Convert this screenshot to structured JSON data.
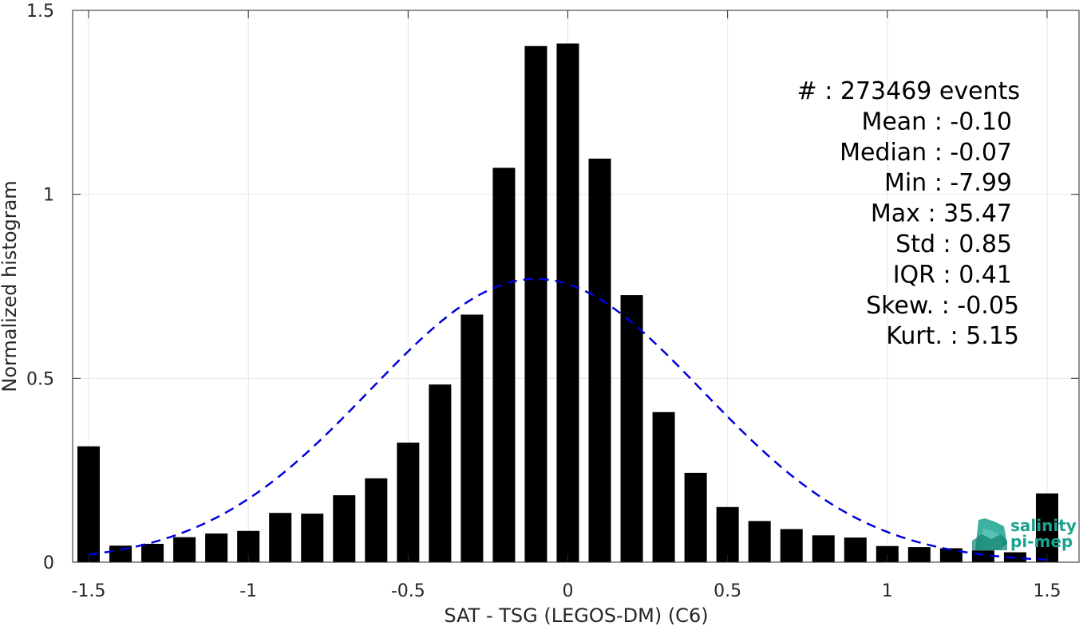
{
  "chart_data": {
    "type": "bar",
    "xlabel": "SAT - TSG (LEGOS-DM) (C6)",
    "ylabel": "Normalized histogram",
    "xlim": [
      -1.55,
      1.6
    ],
    "ylim": [
      0,
      1.5
    ],
    "xticks": [
      -1.5,
      -1,
      -0.5,
      0,
      0.5,
      1,
      1.5
    ],
    "xtick_labels": [
      "-1.5",
      "-1",
      "-0.5",
      "0",
      "0.5",
      "1",
      "1.5"
    ],
    "yticks": [
      0,
      0.5,
      1,
      1.5
    ],
    "ytick_labels": [
      "0",
      "0.5",
      "1",
      "1.5"
    ],
    "grid": true,
    "bar_color": "#000000",
    "bar_width": 0.07,
    "bin_centers": [
      -1.5,
      -1.4,
      -1.3,
      -1.2,
      -1.1,
      -1.0,
      -0.9,
      -0.8,
      -0.7,
      -0.6,
      -0.5,
      -0.4,
      -0.3,
      -0.2,
      -0.1,
      0.0,
      0.1,
      0.2,
      0.3,
      0.4,
      0.5,
      0.6,
      0.7,
      0.8,
      0.9,
      1.0,
      1.1,
      1.2,
      1.3,
      1.4,
      1.5
    ],
    "values": [
      0.315,
      0.045,
      0.05,
      0.068,
      0.078,
      0.085,
      0.134,
      0.132,
      0.182,
      0.228,
      0.325,
      0.483,
      0.673,
      1.072,
      1.403,
      1.41,
      1.097,
      0.726,
      0.408,
      0.243,
      0.15,
      0.112,
      0.09,
      0.073,
      0.067,
      0.044,
      0.041,
      0.038,
      0.032,
      0.027,
      0.187
    ],
    "fit_curve": {
      "type": "gaussian",
      "mean": -0.1,
      "peak": 0.77,
      "sigma": 0.52,
      "x_range": [
        -1.5,
        1.5
      ],
      "color": "#0000dd",
      "style": "dashed"
    }
  },
  "stats": {
    "lines": [
      "#  : 273469 events",
      "Mean : -0.10",
      "Median : -0.07",
      "Min : -7.99",
      "Max : 35.47",
      "Std : 0.85",
      "IQR : 0.41",
      "Skew. : -0.05",
      "Kurt. : 5.15"
    ]
  },
  "logo": {
    "line1": "salinity",
    "line2": "pi-mep",
    "color": "#1aa38f"
  }
}
